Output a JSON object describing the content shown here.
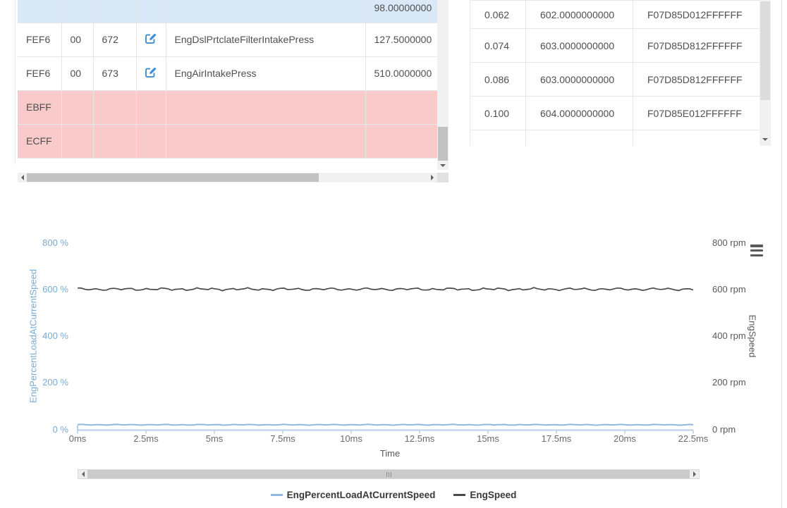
{
  "colors": {
    "accent_blue": "#3d8ed0",
    "row_highlight_blue": "#d9e9f8",
    "row_error_pink": "#f8caca",
    "series_load_blue": "#8fb9dc",
    "series_speed_dark": "#4a4a4a",
    "left_axis_blue": "#7aabd4",
    "axis_line_blue": "#b9cfe6",
    "border_gray": "#e6e6e6"
  },
  "icons": {
    "edit": "pencil-square-icon",
    "menu": "hamburger-menu-icon",
    "scroll_up_down_left_right": "triangle-arrow-icons"
  },
  "left_table": {
    "partial_row": {
      "value": "98.00000000"
    },
    "rows": [
      {
        "pgn": "FEF6",
        "sa": "00",
        "spn": "672",
        "has_edit": true,
        "name": "EngDslPrtclateFilterIntakePress",
        "value": "127.5000000",
        "type": "normal"
      },
      {
        "pgn": "FEF6",
        "sa": "00",
        "spn": "673",
        "has_edit": true,
        "name": "EngAirIntakePress",
        "value": "510.0000000",
        "type": "normal"
      },
      {
        "pgn": "EBFF",
        "sa": "",
        "spn": "",
        "has_edit": false,
        "name": "",
        "value": "",
        "type": "error"
      },
      {
        "pgn": "ECFF",
        "sa": "",
        "spn": "",
        "has_edit": false,
        "name": "",
        "value": "",
        "type": "error"
      }
    ]
  },
  "right_table": {
    "rows": [
      {
        "time": "0.062",
        "value": "602.0000000000",
        "hex": "F07D85D012FFFFFF"
      },
      {
        "time": "0.074",
        "value": "603.0000000000",
        "hex": "F07D85D812FFFFFF"
      },
      {
        "time": "0.086",
        "value": "603.0000000000",
        "hex": "F07D85D812FFFFFF"
      },
      {
        "time": "0.100",
        "value": "604.0000000000",
        "hex": "F07D85E012FFFFFF"
      }
    ]
  },
  "chart_data": {
    "type": "line",
    "xlabel": "Time",
    "x_ticks": [
      "0ms",
      "2.5ms",
      "5ms",
      "7.5ms",
      "10ms",
      "12.5ms",
      "15ms",
      "17.5ms",
      "20ms",
      "22.5ms"
    ],
    "x_range_ms": [
      0,
      22.5
    ],
    "grid": false,
    "legend_position": "bottom",
    "left_axis": {
      "title": "EngPercentLoadAtCurrentSpeed",
      "ticks": [
        "0 %",
        "200 %",
        "400 %",
        "600 %",
        "800 %"
      ],
      "range": [
        0,
        800
      ]
    },
    "right_axis": {
      "title": "EngSpeed",
      "ticks": [
        "0 rpm",
        "200 rpm",
        "400 rpm",
        "600 rpm",
        "800 rpm"
      ],
      "range": [
        0,
        800
      ]
    },
    "series": [
      {
        "name": "EngPercentLoadAtCurrentSpeed",
        "unit": "%",
        "color": "#8fb9dc",
        "base_value": 20,
        "noise_amplitude": 2,
        "axis": "left"
      },
      {
        "name": "EngSpeed",
        "unit": "rpm",
        "color": "#4a4a4a",
        "base_value": 601,
        "noise_amplitude": 6.5,
        "axis": "right"
      }
    ],
    "legend": [
      "EngPercentLoadAtCurrentSpeed",
      "EngSpeed"
    ]
  }
}
